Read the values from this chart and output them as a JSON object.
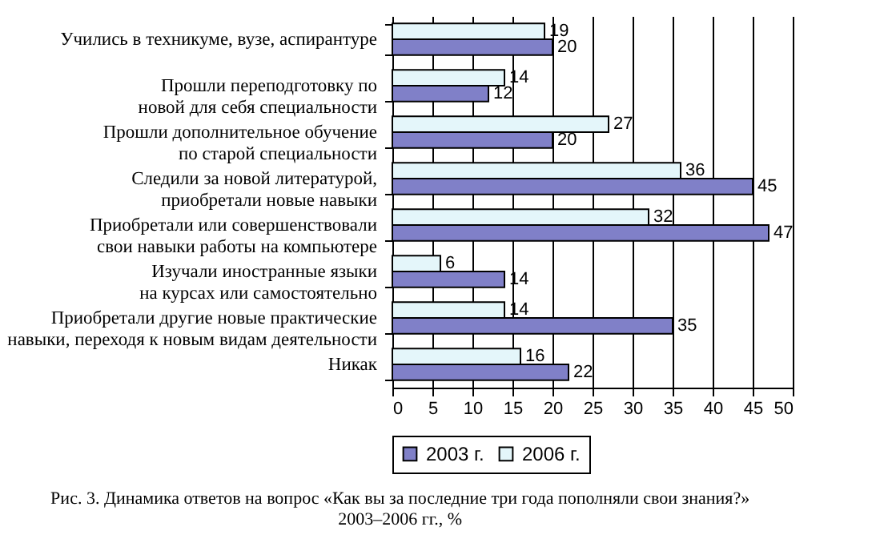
{
  "chart_data": {
    "type": "bar",
    "orientation": "horizontal",
    "categories": [
      "Учились в техникуме, вузе, аспирантуре",
      "Прошли переподготовку по новой для себя специальности",
      "Прошли дополнительное обучение по старой специальности",
      "Следили за новой литературой, приобретали новые навыки",
      "Приобретали или совершенствовали свои навыки работы на компьютере",
      "Изучали иностранные языки на курсах или самостоятельно",
      "Приобретали другие новые практические навыки, переходя к новым видам деятельности",
      "Никак"
    ],
    "series": [
      {
        "name": "2003 г.",
        "color": "#8080c8",
        "values": [
          20,
          12,
          20,
          45,
          47,
          14,
          35,
          22
        ]
      },
      {
        "name": "2006 г.",
        "color": "#e4f6fa",
        "values": [
          19,
          14,
          27,
          36,
          32,
          6,
          14,
          16
        ]
      }
    ],
    "xlim": [
      0,
      50
    ],
    "xticks": [
      0,
      5,
      10,
      15,
      20,
      25,
      30,
      35,
      40,
      45,
      50
    ],
    "grid": "x",
    "legend": "bottom",
    "data_labels": true,
    "annotations": [
      "Рис. 3. Динамика ответов на вопрос «Как вы за последние три года пополняли свои знания?» 2003–2006 гг., %"
    ]
  }
}
